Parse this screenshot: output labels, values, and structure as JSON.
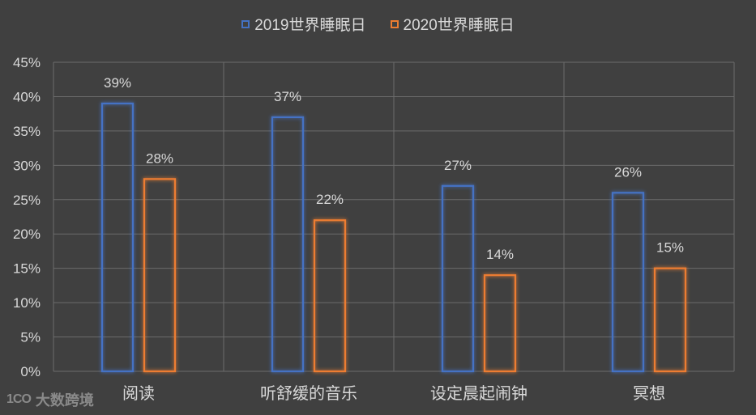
{
  "chart_data": {
    "type": "bar",
    "title": "",
    "xlabel": "",
    "ylabel": "",
    "categories": [
      "阅读",
      "听舒缓的音乐",
      "设定晨起闹钟",
      "冥想"
    ],
    "series": [
      {
        "name": "2019世界睡眠日",
        "values": [
          39,
          37,
          27,
          26
        ],
        "color": "#4472c4"
      },
      {
        "name": "2020世界睡眠日",
        "values": [
          28,
          22,
          14,
          15
        ],
        "color": "#ed7d31"
      }
    ],
    "data_labels": [
      [
        "39%",
        "37%",
        "27%",
        "26%"
      ],
      [
        "28%",
        "22%",
        "14%",
        "15%"
      ]
    ],
    "ylim": [
      0,
      45
    ],
    "yticks": [
      "0%",
      "5%",
      "10%",
      "15%",
      "20%",
      "25%",
      "30%",
      "35%",
      "40%",
      "45%"
    ],
    "grid": true,
    "legend_position": "top"
  },
  "watermark": {
    "logo": "1CO",
    "text": "大数跨境"
  }
}
